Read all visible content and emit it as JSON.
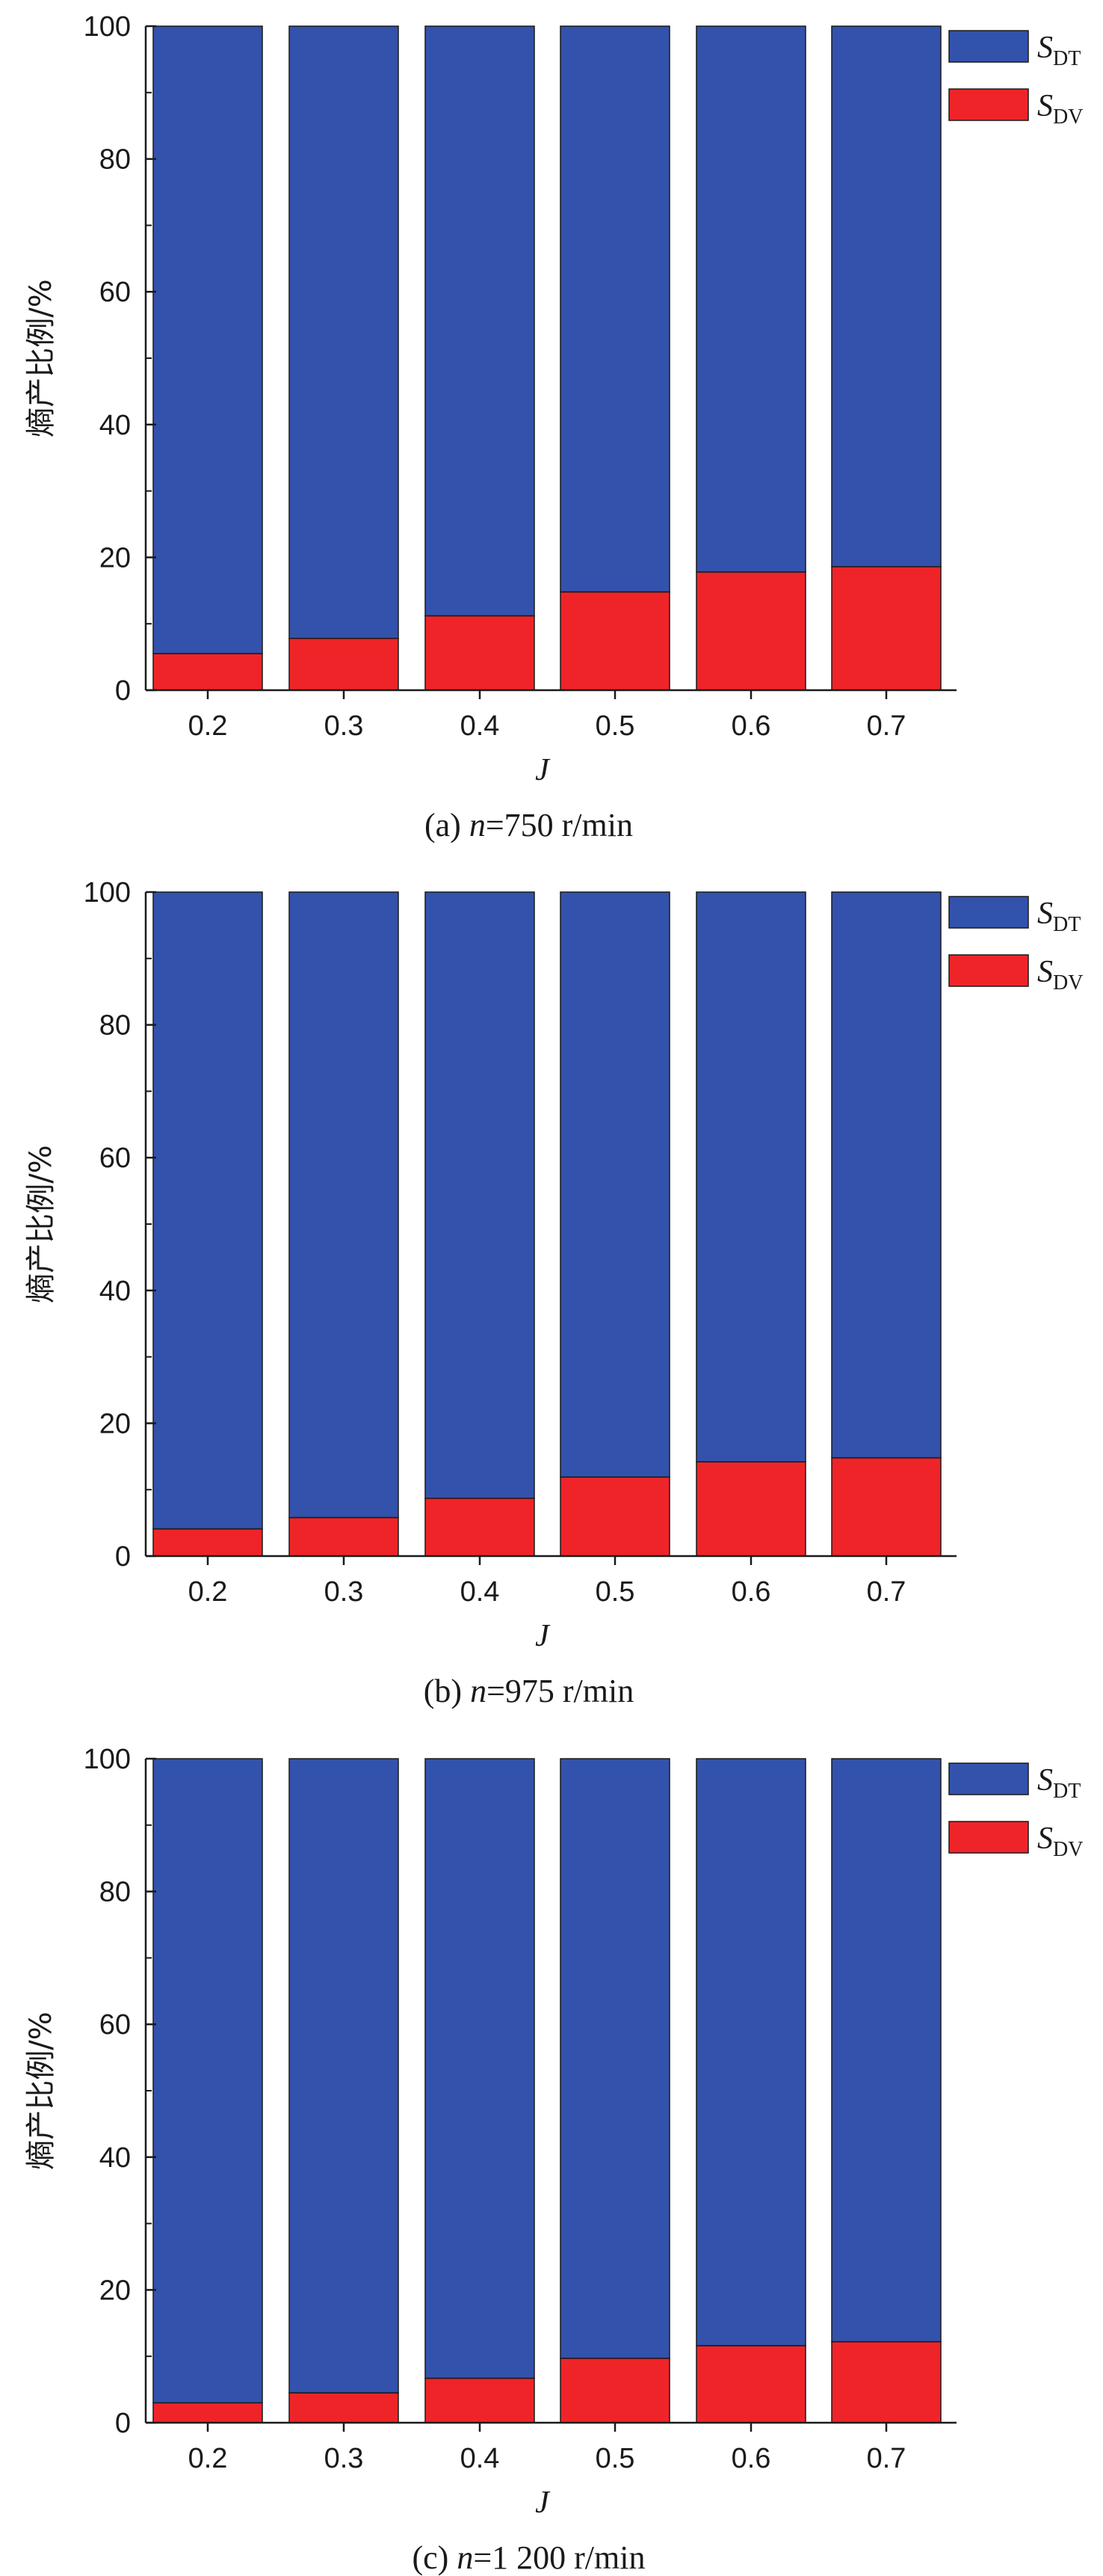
{
  "colors": {
    "dt": "#3352ac",
    "dv": "#ef2429"
  },
  "chart_data": [
    {
      "type": "bar",
      "stacked": true,
      "caption": {
        "prefix": "(a) ",
        "var": "n",
        "value": "=750 r/min"
      },
      "xlabel": "J",
      "ylabel": "熵产比例/%",
      "categories": [
        "0.2",
        "0.3",
        "0.4",
        "0.5",
        "0.6",
        "0.7"
      ],
      "ylim": [
        0,
        100
      ],
      "yticks": [
        "0",
        "20",
        "40",
        "60",
        "80",
        "100"
      ],
      "legend_position": "top-right",
      "series": [
        {
          "name": "S",
          "sub": "DV",
          "color_key": "dv",
          "values": [
            5.5,
            7.8,
            11.2,
            14.8,
            17.8,
            18.6
          ]
        },
        {
          "name": "S",
          "sub": "DT",
          "color_key": "dt",
          "values": [
            94.5,
            92.2,
            88.8,
            85.2,
            82.2,
            81.4
          ]
        }
      ]
    },
    {
      "type": "bar",
      "stacked": true,
      "caption": {
        "prefix": "(b) ",
        "var": "n",
        "value": "=975 r/min"
      },
      "xlabel": "J",
      "ylabel": "熵产比例/%",
      "categories": [
        "0.2",
        "0.3",
        "0.4",
        "0.5",
        "0.6",
        "0.7"
      ],
      "ylim": [
        0,
        100
      ],
      "yticks": [
        "0",
        "20",
        "40",
        "60",
        "80",
        "100"
      ],
      "legend_position": "top-right",
      "series": [
        {
          "name": "S",
          "sub": "DV",
          "color_key": "dv",
          "values": [
            4.1,
            5.8,
            8.7,
            11.9,
            14.2,
            14.8
          ]
        },
        {
          "name": "S",
          "sub": "DT",
          "color_key": "dt",
          "values": [
            95.9,
            94.2,
            91.3,
            88.1,
            85.8,
            85.2
          ]
        }
      ]
    },
    {
      "type": "bar",
      "stacked": true,
      "caption": {
        "prefix": "(c) ",
        "var": "n",
        "value": "=1 200 r/min"
      },
      "xlabel": "J",
      "ylabel": "熵产比例/%",
      "categories": [
        "0.2",
        "0.3",
        "0.4",
        "0.5",
        "0.6",
        "0.7"
      ],
      "ylim": [
        0,
        100
      ],
      "yticks": [
        "0",
        "20",
        "40",
        "60",
        "80",
        "100"
      ],
      "legend_position": "top-right",
      "series": [
        {
          "name": "S",
          "sub": "DV",
          "color_key": "dv",
          "values": [
            3.0,
            4.5,
            6.7,
            9.7,
            11.6,
            12.2
          ]
        },
        {
          "name": "S",
          "sub": "DT",
          "color_key": "dt",
          "values": [
            97.0,
            95.5,
            93.3,
            90.3,
            88.4,
            87.8
          ]
        }
      ]
    }
  ]
}
